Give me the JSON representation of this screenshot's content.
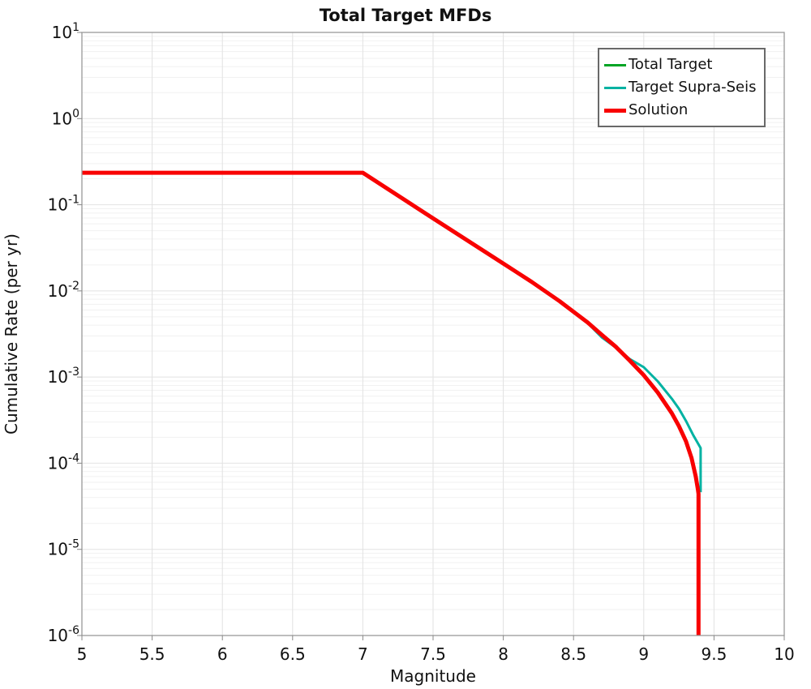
{
  "title": "Total Target MFDs",
  "axes": {
    "xlabel": "Magnitude",
    "ylabel": "Cumulative Rate (per yr)",
    "x_ticks": [
      5,
      5.5,
      6,
      6.5,
      7,
      7.5,
      8,
      8.5,
      9,
      9.5,
      10
    ],
    "x_tick_labels": [
      "5",
      "5.5",
      "6",
      "6.5",
      "7",
      "7.5",
      "8",
      "8.5",
      "9",
      "9.5",
      "10"
    ],
    "y_tick_base": "10",
    "y_tick_exponents": [
      1,
      0,
      -1,
      -2,
      -3,
      -4,
      -5,
      -6
    ]
  },
  "colors": {
    "grid_major": "#e2e2e2",
    "grid_minor": "#f1f1f1",
    "plot_border": "#999999",
    "tick_mark": "#888888",
    "legend_border": "#696969",
    "background": "#ffffff"
  },
  "chart_data": {
    "type": "line",
    "title": "Total Target MFDs",
    "xlabel": "Magnitude",
    "ylabel": "Cumulative Rate (per yr)",
    "xlim": [
      5,
      10
    ],
    "ylim": [
      1e-06,
      10
    ],
    "yscale": "log",
    "grid": true,
    "legend_position": "upper right",
    "series": [
      {
        "name": "Total Target",
        "color": "#00a424",
        "width": 3,
        "points": [
          [
            5.0,
            0.235
          ],
          [
            7.0,
            0.235
          ],
          [
            7.5,
            0.0695
          ],
          [
            8.0,
            0.0208
          ],
          [
            8.2,
            0.0128
          ],
          [
            8.4,
            0.0076
          ],
          [
            8.6,
            0.0043
          ],
          [
            8.7,
            0.0031
          ],
          [
            8.8,
            0.00225
          ],
          [
            8.9,
            0.00155
          ],
          [
            9.0,
            0.00105
          ],
          [
            9.1,
            0.00066
          ],
          [
            9.2,
            0.00038
          ],
          [
            9.25,
            0.00027
          ],
          [
            9.3,
            0.00018
          ],
          [
            9.34,
            0.000115
          ],
          [
            9.37,
            7e-05
          ],
          [
            9.385,
            5e-05
          ],
          [
            9.39,
            4.4e-05
          ],
          [
            9.39,
            1e-06
          ]
        ]
      },
      {
        "name": "Target Supra-Seis",
        "color": "#00b2a2",
        "width": 3,
        "points": [
          [
            5.0,
            0.235
          ],
          [
            7.0,
            0.235
          ],
          [
            7.5,
            0.0695
          ],
          [
            8.0,
            0.0208
          ],
          [
            8.2,
            0.0128
          ],
          [
            8.4,
            0.0076
          ],
          [
            8.6,
            0.00425
          ],
          [
            8.7,
            0.0029
          ],
          [
            8.8,
            0.0022
          ],
          [
            8.9,
            0.00162
          ],
          [
            9.0,
            0.0013
          ],
          [
            9.1,
            0.00089
          ],
          [
            9.2,
            0.00056
          ],
          [
            9.25,
            0.00043
          ],
          [
            9.3,
            0.00031
          ],
          [
            9.35,
            0.000215
          ],
          [
            9.395,
            0.00016
          ],
          [
            9.405,
            0.00015
          ],
          [
            9.405,
            4.6e-05
          ]
        ]
      },
      {
        "name": "Solution",
        "color": "#f80000",
        "width": 5,
        "points": [
          [
            5.0,
            0.235
          ],
          [
            7.0,
            0.235
          ],
          [
            7.5,
            0.0695
          ],
          [
            8.0,
            0.0208
          ],
          [
            8.2,
            0.0128
          ],
          [
            8.4,
            0.0076
          ],
          [
            8.6,
            0.0043
          ],
          [
            8.7,
            0.0031
          ],
          [
            8.8,
            0.00225
          ],
          [
            8.9,
            0.00155
          ],
          [
            9.0,
            0.00105
          ],
          [
            9.1,
            0.00066
          ],
          [
            9.2,
            0.00038
          ],
          [
            9.25,
            0.00027
          ],
          [
            9.3,
            0.00018
          ],
          [
            9.34,
            0.000115
          ],
          [
            9.37,
            7e-05
          ],
          [
            9.385,
            5e-05
          ],
          [
            9.39,
            4.4e-05
          ],
          [
            9.39,
            1e-06
          ]
        ]
      }
    ]
  }
}
